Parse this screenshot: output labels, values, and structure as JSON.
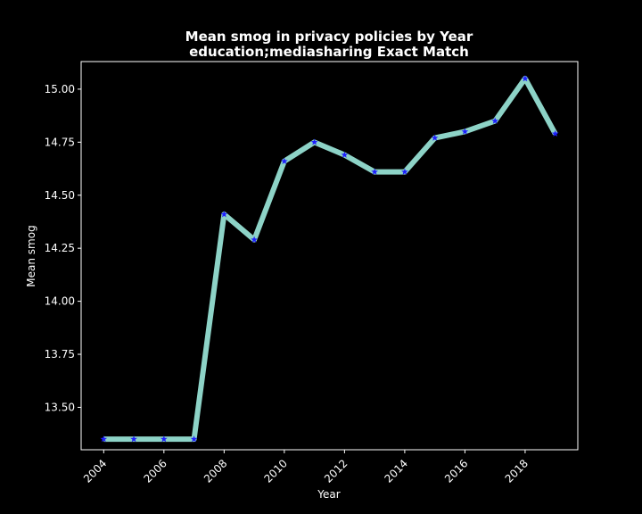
{
  "chart_data": {
    "type": "line",
    "title": "Mean smog in privacy policies by Year",
    "subtitle": "education;mediasharing Exact Match",
    "xlabel": "Year",
    "ylabel": "Mean smog",
    "x": [
      2004,
      2005,
      2006,
      2007,
      2008,
      2009,
      2010,
      2011,
      2012,
      2013,
      2014,
      2015,
      2016,
      2017,
      2018,
      2019
    ],
    "series": [
      {
        "values": [
          13.35,
          13.35,
          13.35,
          13.35,
          14.41,
          14.29,
          14.66,
          14.75,
          14.69,
          14.61,
          14.61,
          14.77,
          14.8,
          14.85,
          15.05,
          14.79
        ]
      }
    ],
    "xlim": [
      2003.25,
      2019.75
    ],
    "ylim": [
      13.3,
      15.13
    ],
    "xticks": [
      2004,
      2006,
      2008,
      2010,
      2012,
      2014,
      2016,
      2018
    ],
    "xtick_labels": [
      "2004",
      "2006",
      "2008",
      "2010",
      "2012",
      "2014",
      "2016",
      "2018"
    ],
    "yticks": [
      13.5,
      13.75,
      14.0,
      14.25,
      14.5,
      14.75,
      15.0
    ],
    "ytick_labels": [
      "13.50",
      "13.75",
      "14.00",
      "14.25",
      "14.50",
      "14.75",
      "15.00"
    ],
    "grid": false,
    "legend": "none",
    "colors": {
      "background": "#000000",
      "axes": "#ffffff",
      "line": "#8dd3c7",
      "marker": "#1f1fff",
      "text": "#ffffff"
    },
    "marker": "star-icon"
  }
}
